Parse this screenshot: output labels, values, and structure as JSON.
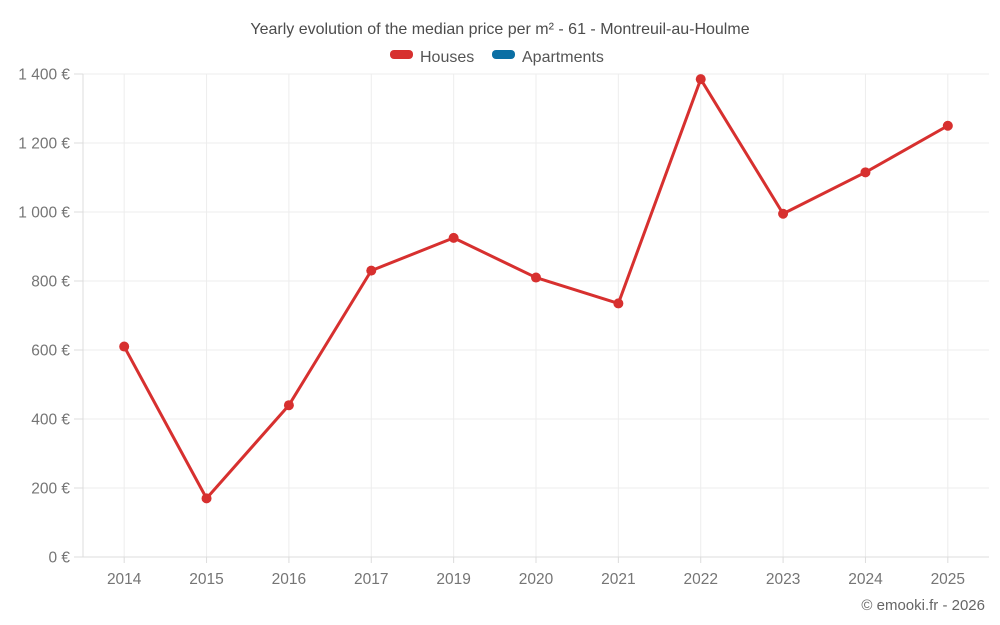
{
  "footer": {
    "text": "© emooki.fr - 2026"
  },
  "chart_data": {
    "type": "line",
    "title": "Yearly evolution of the median price per m² - 61 - Montreuil-au-Houlme",
    "xlabel": "",
    "ylabel": "",
    "categories": [
      "2014",
      "2015",
      "2016",
      "2017",
      "2019",
      "2020",
      "2021",
      "2022",
      "2023",
      "2024",
      "2025"
    ],
    "series": [
      {
        "name": "Houses",
        "color": "#d7302f",
        "values": [
          610,
          170,
          440,
          830,
          925,
          810,
          735,
          1385,
          995,
          1115,
          1250
        ]
      },
      {
        "name": "Apartments",
        "color": "#0b6fa4",
        "values": []
      }
    ],
    "ylim": [
      0,
      1400
    ],
    "ytick_step": 200,
    "ytick_labels": [
      "0 €",
      "200 €",
      "400 €",
      "600 €",
      "800 €",
      "1 000 €",
      "1 200 €",
      "1 400 €"
    ],
    "grid": true,
    "legend_position": "top",
    "text_color": "#757575",
    "grid_color": "#ededed",
    "axis_color": "#dcdcdc"
  }
}
